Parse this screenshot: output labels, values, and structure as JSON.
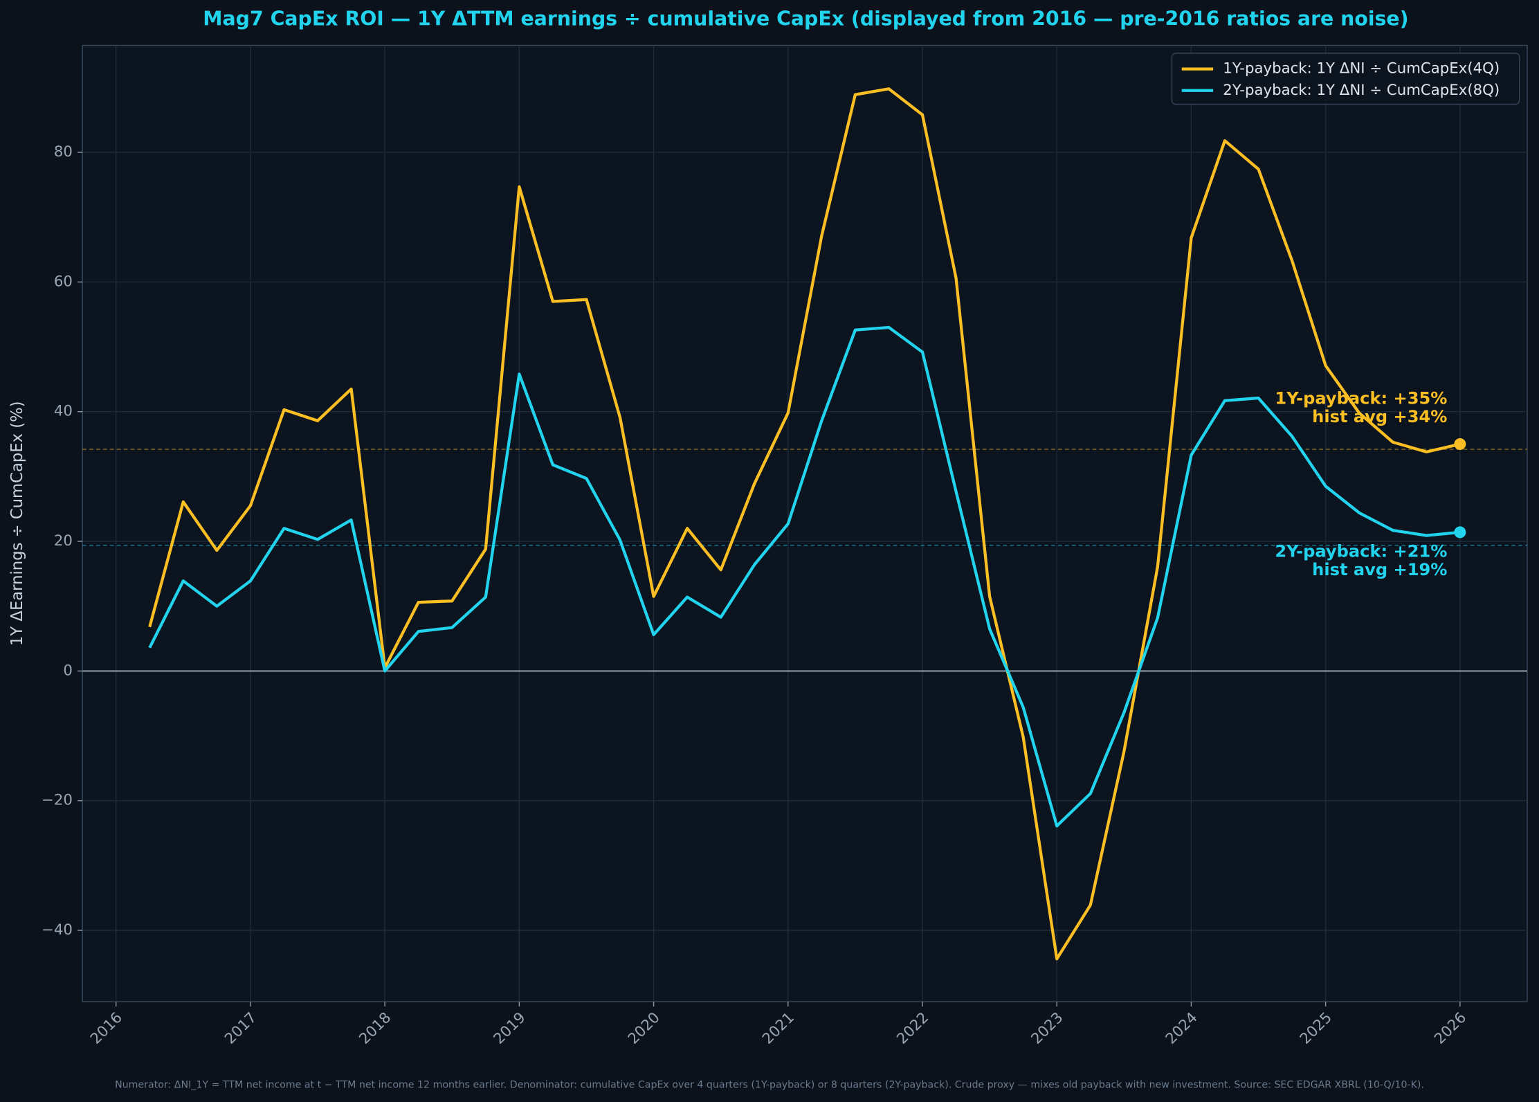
{
  "chart_data": {
    "type": "line",
    "title": "Mag7 CapEx ROI — 1Y ΔTTM earnings ÷ cumulative CapEx  (displayed from 2016 — pre-2016 ratios are noise)",
    "y_label": "1Y ΔEarnings ÷ CumCapEx  (%)",
    "footnote": "Numerator: ΔNI_1Y = TTM net income at t − TTM net income 12 months earlier. Denominator: cumulative CapEx over 4 quarters (1Y-payback) or 8 quarters (2Y-payback). Crude proxy — mixes old payback with new investment. Source: SEC EDGAR XBRL (10-Q/10-K).",
    "x": [
      2016.25,
      2016.5,
      2016.75,
      2017,
      2017.25,
      2017.5,
      2017.75,
      2018,
      2018.25,
      2018.5,
      2018.75,
      2019,
      2019.25,
      2019.5,
      2019.75,
      2020,
      2020.25,
      2020.5,
      2020.75,
      2021,
      2021.25,
      2021.5,
      2021.75,
      2022,
      2022.25,
      2022.5,
      2022.75,
      2023,
      2023.25,
      2023.5,
      2023.75,
      2024,
      2024.25,
      2024.5,
      2024.75,
      2025,
      2025.25,
      2025.5,
      2025.75,
      2026
    ],
    "series": [
      {
        "name": "1Y-payback: 1Y ΔNI ÷ CumCapEx(4Q)",
        "color": "#fbbf24",
        "values": [
          6.8,
          26.1,
          18.6,
          25.5,
          40.3,
          38.6,
          43.5,
          0.5,
          10.6,
          10.8,
          18.8,
          74.7,
          57.0,
          57.3,
          39.1,
          11.5,
          22.0,
          15.6,
          28.9,
          39.8,
          67.1,
          88.9,
          89.8,
          85.8,
          60.6,
          11.5,
          -10.2,
          -44.4,
          -36.1,
          -12.4,
          16.1,
          66.8,
          81.8,
          77.4,
          63.3,
          47.1,
          39.8,
          35.3,
          33.8,
          35.0
        ],
        "hist_avg": 34.2,
        "annotation": [
          "1Y-payback: +35%",
          "hist avg +34%"
        ]
      },
      {
        "name": "2Y-payback: 1Y ΔNI ÷ CumCapEx(8Q)",
        "color": "#22d3ee",
        "values": [
          3.6,
          13.9,
          10.0,
          13.9,
          22.0,
          20.3,
          23.3,
          0,
          6.1,
          6.7,
          11.4,
          45.8,
          31.8,
          29.7,
          20.2,
          5.6,
          11.4,
          8.3,
          16.4,
          22.7,
          38.6,
          52.6,
          53.0,
          49.2,
          27.7,
          6.5,
          -5.6,
          -23.9,
          -18.9,
          -6.4,
          8.2,
          33.3,
          41.7,
          42.1,
          36.2,
          28.5,
          24.4,
          21.7,
          20.9,
          21.4
        ],
        "hist_avg": 19.4,
        "annotation": [
          "2Y-payback: +21%",
          "hist avg +19%"
        ]
      }
    ],
    "xlim": [
      2015.75,
      2026.5
    ],
    "xticks": [
      2016,
      2017,
      2018,
      2019,
      2020,
      2021,
      2022,
      2023,
      2024,
      2025,
      2026
    ],
    "ylim": [
      -51,
      96.5
    ],
    "yticks": [
      {
        "value": -40,
        "label": "−40"
      },
      {
        "value": -20,
        "label": "−20"
      },
      0,
      20,
      40,
      60,
      80
    ],
    "grid": true,
    "legend": "upper right"
  }
}
